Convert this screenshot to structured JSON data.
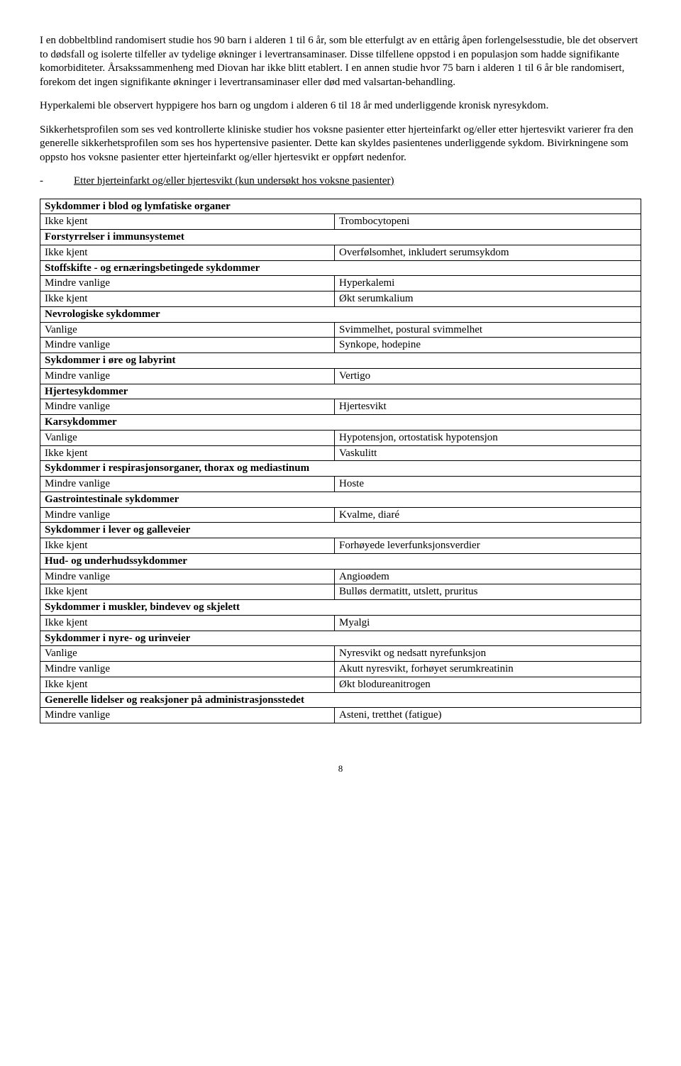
{
  "paragraphs": {
    "p1": "I en dobbeltblind randomisert studie hos 90 barn i alderen 1 til 6 år, som ble etterfulgt av en ettårig åpen forlengelsesstudie, ble det observert to dødsfall og isolerte tilfeller av tydelige økninger i levertransaminaser. Disse tilfellene oppstod i en populasjon som hadde signifikante komorbiditeter. Årsakssammenheng med Diovan har ikke blitt etablert. I en annen studie hvor 75 barn i alderen 1 til 6 år ble randomisert, forekom det ingen signifikante økninger i levertransaminaser eller død med valsartan-behandling.",
    "p2": "Hyperkalemi ble observert hyppigere hos barn og ungdom i alderen 6 til 18 år med underliggende kronisk nyresykdom.",
    "p3": "Sikkerhetsprofilen som ses ved kontrollerte kliniske studier hos voksne pasienter etter hjerteinfarkt og/eller etter hjertesvikt varierer fra den generelle sikkerhetsprofilen som ses hos hypertensive pasienter. Dette kan skyldes pasientenes underliggende sykdom. Bivirkningene som oppsto hos voksne pasienter etter hjerteinfarkt og/eller hjertesvikt er oppført nedenfor.",
    "dash": "-",
    "heading": "Etter hjerteinfarkt og/eller hjertesvikt (kun undersøkt hos voksne pasienter)"
  },
  "table": {
    "rows": [
      {
        "type": "header",
        "text": "Sykdommer i blod og lymfatiske organer"
      },
      {
        "type": "row",
        "left": "Ikke kjent",
        "right": "Trombocytopeni"
      },
      {
        "type": "header",
        "text": "Forstyrrelser i immunsystemet"
      },
      {
        "type": "row",
        "left": "Ikke kjent",
        "right": "Overfølsomhet, inkludert serumsykdom"
      },
      {
        "type": "header",
        "text": "Stoffskifte - og ernæringsbetingede sykdommer"
      },
      {
        "type": "row",
        "left": "Mindre vanlige",
        "right": "Hyperkalemi"
      },
      {
        "type": "row",
        "left": "Ikke kjent",
        "right": "Økt serumkalium"
      },
      {
        "type": "header",
        "text": "Nevrologiske sykdommer"
      },
      {
        "type": "row",
        "left": "Vanlige",
        "right": "Svimmelhet, postural svimmelhet"
      },
      {
        "type": "row",
        "left": "Mindre vanlige",
        "right": "Synkope, hodepine"
      },
      {
        "type": "header",
        "text": "Sykdommer i øre og labyrint"
      },
      {
        "type": "row",
        "left": "Mindre vanlige",
        "right": "Vertigo"
      },
      {
        "type": "header",
        "text": "Hjertesykdommer"
      },
      {
        "type": "row",
        "left": "Mindre vanlige",
        "right": "Hjertesvikt"
      },
      {
        "type": "header",
        "text": "Karsykdommer"
      },
      {
        "type": "row",
        "left": "Vanlige",
        "right": "Hypotensjon, ortostatisk hypotensjon"
      },
      {
        "type": "row",
        "left": "Ikke kjent",
        "right": "Vaskulitt"
      },
      {
        "type": "header",
        "text": "Sykdommer i respirasjonsorganer, thorax og mediastinum"
      },
      {
        "type": "row",
        "left": "Mindre vanlige",
        "right": "Hoste"
      },
      {
        "type": "header",
        "text": "Gastrointestinale sykdommer"
      },
      {
        "type": "row",
        "left": "Mindre vanlige",
        "right": "Kvalme, diaré"
      },
      {
        "type": "header",
        "text": "Sykdommer i lever og galleveier"
      },
      {
        "type": "row",
        "left": "Ikke kjent",
        "right": "Forhøyede leverfunksjonsverdier"
      },
      {
        "type": "header",
        "text": "Hud- og underhudssykdommer"
      },
      {
        "type": "row",
        "left": "Mindre vanlige",
        "right": "Angioødem"
      },
      {
        "type": "row",
        "left": "Ikke kjent",
        "right": "Bulløs dermatitt, utslett, pruritus"
      },
      {
        "type": "header",
        "text": "Sykdommer i muskler, bindevev og skjelett"
      },
      {
        "type": "row",
        "left": "Ikke kjent",
        "right": "Myalgi"
      },
      {
        "type": "header",
        "text": "Sykdommer i nyre- og urinveier"
      },
      {
        "type": "row",
        "left": "Vanlige",
        "right": "Nyresvikt og nedsatt nyrefunksjon"
      },
      {
        "type": "row",
        "left": "Mindre vanlige",
        "right": "Akutt nyresvikt, forhøyet serumkreatinin"
      },
      {
        "type": "row",
        "left": "Ikke kjent",
        "right": "Økt blodureanitrogen"
      },
      {
        "type": "header",
        "text": "Generelle lidelser og reaksjoner på administrasjonsstedet"
      },
      {
        "type": "row",
        "left": "Mindre vanlige",
        "right": "Asteni, tretthet (fatigue)"
      }
    ]
  },
  "page_number": "8"
}
